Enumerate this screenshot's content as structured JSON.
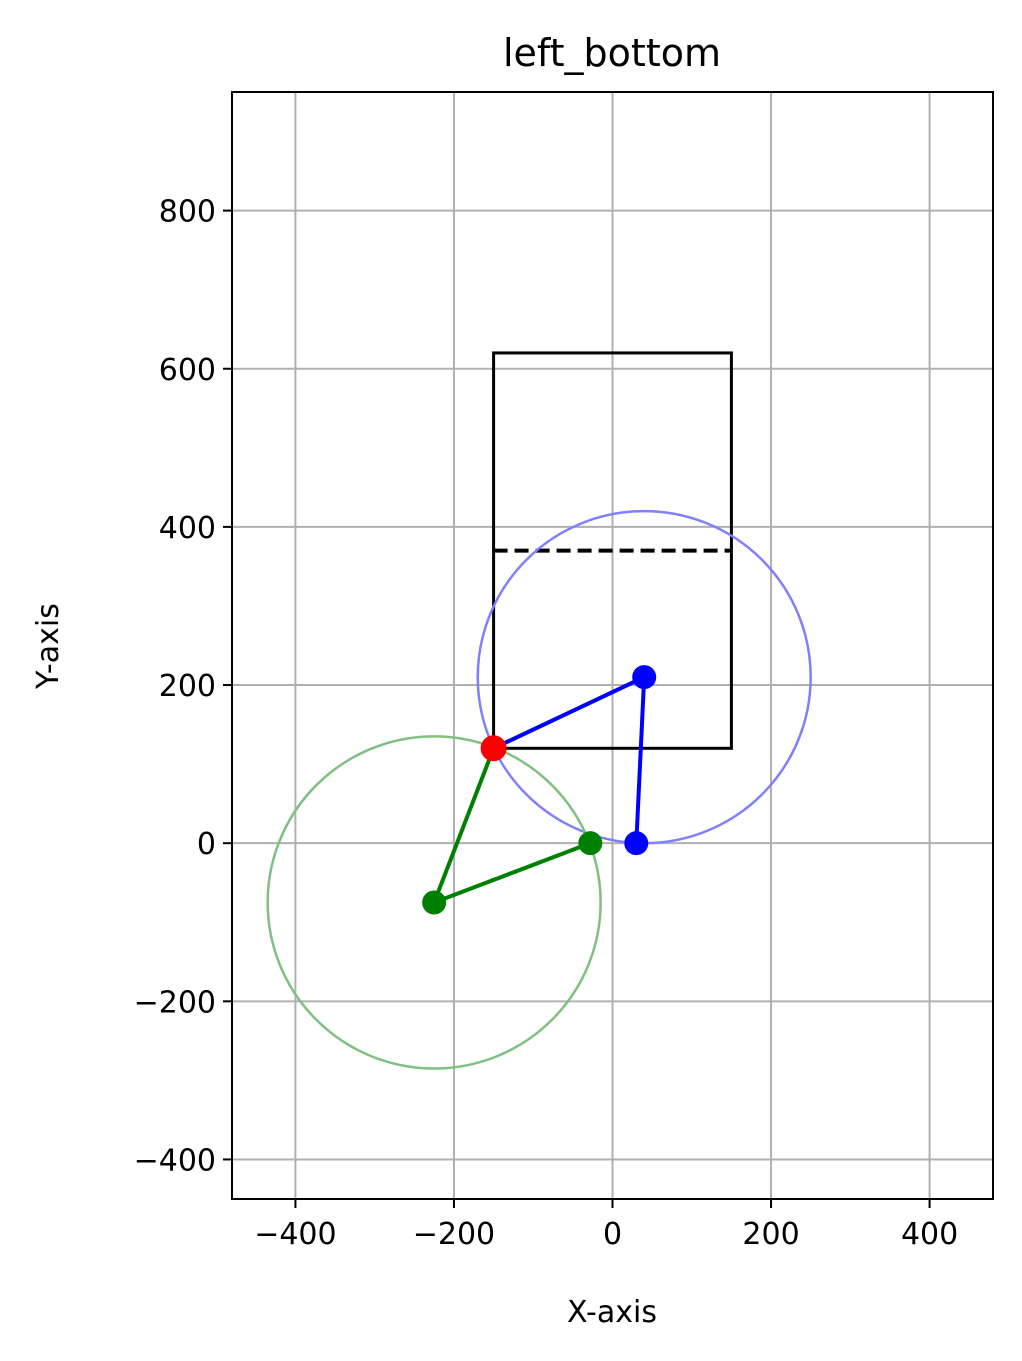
{
  "chart_data": {
    "type": "line",
    "title": "left_bottom",
    "xlabel": "X-axis",
    "ylabel": "Y-axis",
    "xlim": [
      -480,
      480
    ],
    "ylim": [
      -450,
      950
    ],
    "xticks": [
      -400,
      -200,
      0,
      200,
      400
    ],
    "yticks": [
      -400,
      -200,
      0,
      200,
      400,
      600,
      800
    ],
    "grid": true,
    "rectangle": {
      "x": [
        -150,
        150
      ],
      "y": [
        120,
        620
      ],
      "dashed_line_y": 370,
      "color": "#000000"
    },
    "circles": [
      {
        "cx": 40,
        "cy": 210,
        "r": 210,
        "color": "#8080ff"
      },
      {
        "cx": -225,
        "cy": -75,
        "r": 210,
        "color": "#80c080"
      }
    ],
    "series": [
      {
        "color": "#0000ff",
        "points": [
          [
            -150,
            120
          ],
          [
            40,
            210
          ],
          [
            30,
            0
          ]
        ]
      },
      {
        "color": "#008000",
        "points": [
          [
            -150,
            120
          ],
          [
            -225,
            -75
          ],
          [
            -28,
            0
          ]
        ]
      }
    ],
    "highlight_point": {
      "x": -150,
      "y": 120,
      "color": "#ff0000"
    }
  }
}
